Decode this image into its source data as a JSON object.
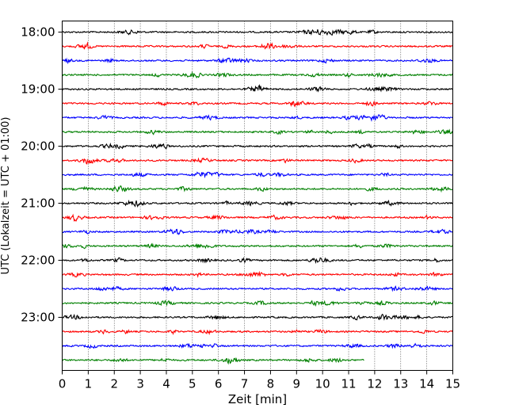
{
  "chart_data": {
    "type": "line",
    "xlabel": "Zeit  [min]",
    "ylabel": "UTC (Lokalzeit = UTC + 01:00)",
    "xlim": [
      0,
      15
    ],
    "x_ticks": [
      "0",
      "1",
      "2",
      "3",
      "4",
      "5",
      "6",
      "7",
      "8",
      "9",
      "10",
      "11",
      "12",
      "13",
      "14",
      "15"
    ],
    "y_ticks": [
      "18:00",
      "19:00",
      "20:00",
      "21:00",
      "22:00",
      "23:00"
    ],
    "grid": "vertical-dotted",
    "trace_interval_minutes": 15,
    "traces_start": "18:00",
    "trace_count": 24,
    "last_trace_end_minute": 11.6,
    "colors": [
      "#000000",
      "#ff0000",
      "#0000ff",
      "#008000"
    ]
  }
}
